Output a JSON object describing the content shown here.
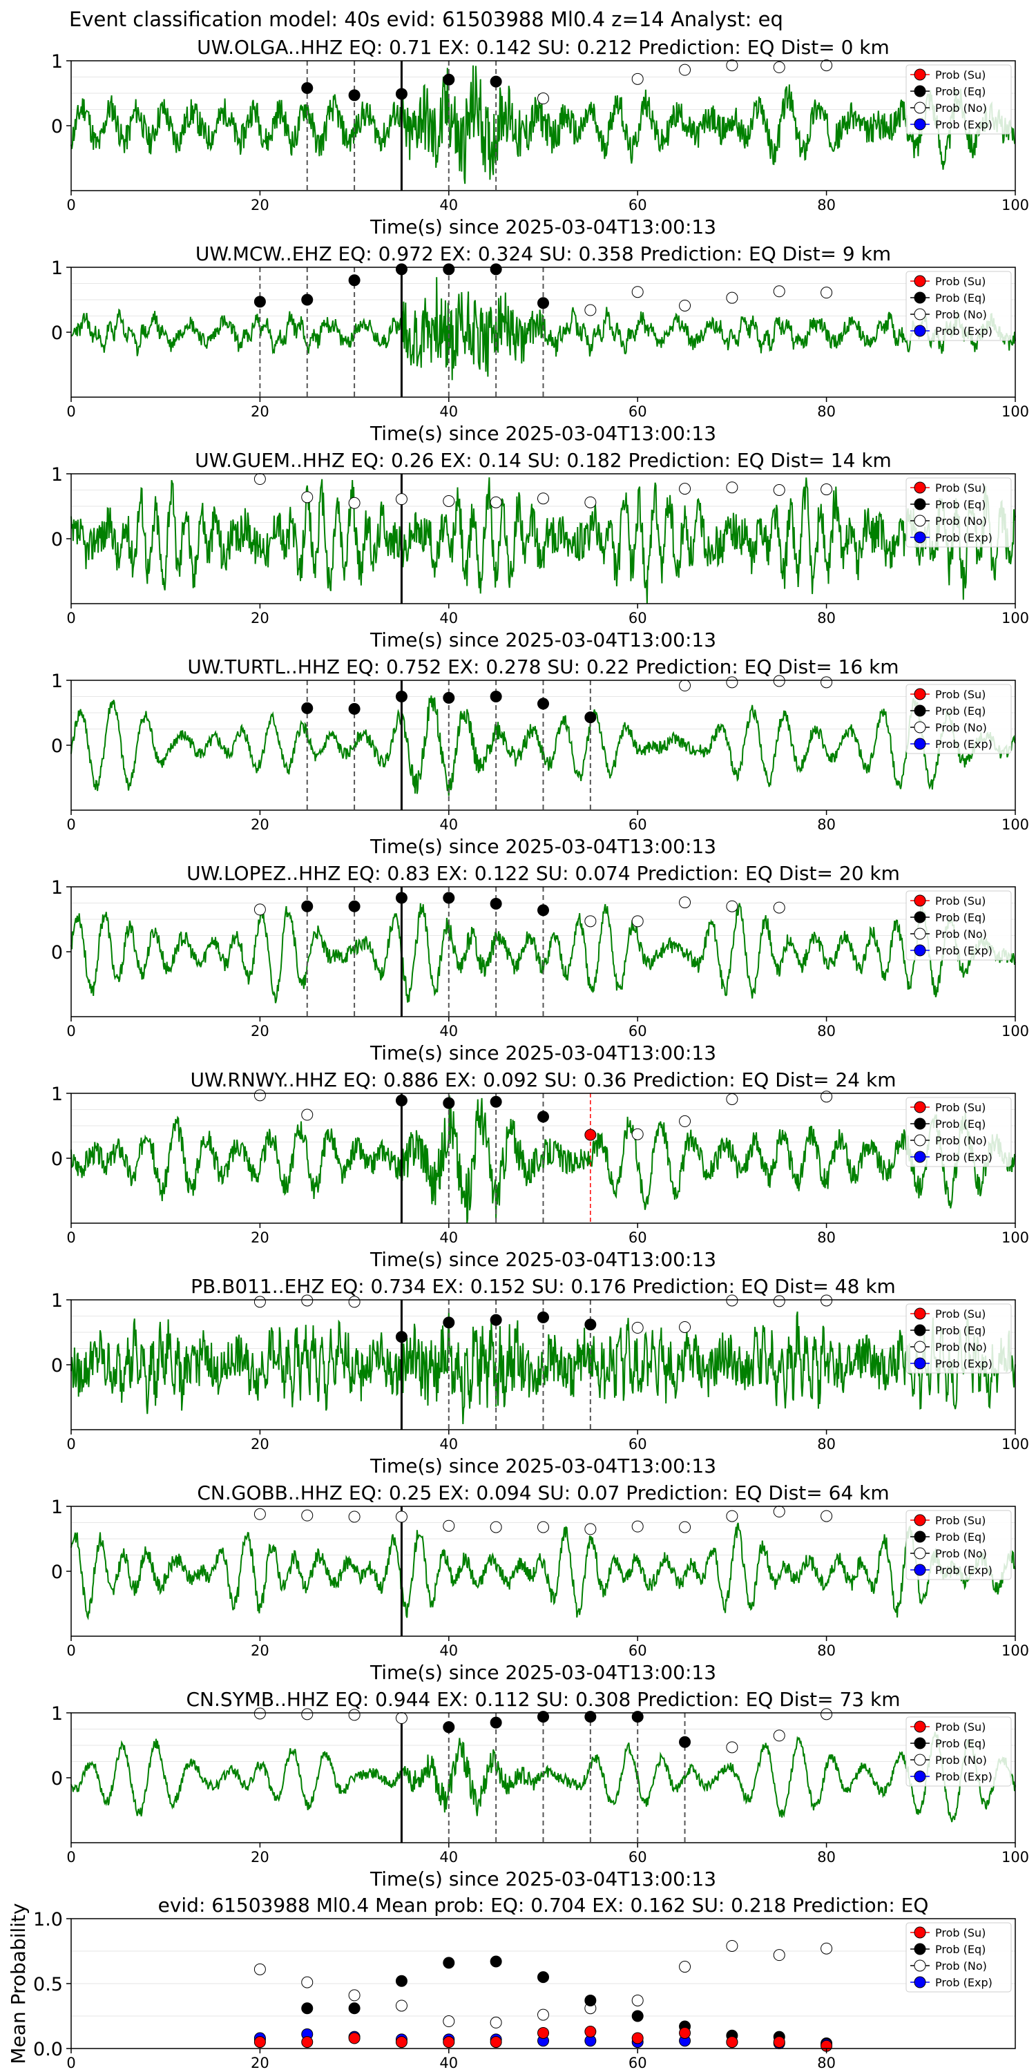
{
  "figure_title": "Event classification model: 40s evid: 61503988 Ml0.4 z=14 Analyst: eq",
  "colors": {
    "waveform": "#008000",
    "prob_su": "#ff0000",
    "prob_eq": "#000000",
    "prob_no": "#ffffff",
    "prob_exp": "#0000ff",
    "pick_line": "#555555",
    "origin_line": "#000000",
    "su_line": "#ff0000"
  },
  "legend_entries": [
    "Prob (Su)",
    "Prob (Eq)",
    "Prob (No)",
    "Prob (Exp)"
  ],
  "chart_data": [
    {
      "type": "line",
      "station": "UW.OLGA..HHZ",
      "title": "UW.OLGA..HHZ   EQ: 0.71  EX: 0.142  SU: 0.212   Prediction: EQ    Dist= 0 km",
      "xlabel": "Time(s) since 2025-03-04T13:00:13",
      "xlim": [
        0,
        100
      ],
      "ylim": [
        -1,
        1
      ],
      "x_ticks": [
        "0",
        "20",
        "40",
        "60",
        "80",
        "100"
      ],
      "y_ticks": [
        "0",
        "1"
      ],
      "legend_position": "top-right",
      "origin_time": 35,
      "eq_picks": [
        25,
        30,
        40,
        45
      ],
      "su_picks": [],
      "eq_points": {
        "x": [
          25,
          30,
          35,
          40,
          45
        ],
        "y": [
          0.58,
          0.47,
          0.49,
          0.71,
          0.68
        ]
      },
      "no_points": {
        "x": [
          50,
          60,
          65,
          70,
          75,
          80
        ],
        "y": [
          0.42,
          0.72,
          0.86,
          0.93,
          0.9,
          0.93
        ]
      },
      "su_points": {
        "x": [],
        "y": []
      },
      "wave": {
        "seed": 11,
        "period": 3.0,
        "amp": 0.35,
        "noise": 0.22,
        "event_boost": 0.45
      }
    },
    {
      "type": "line",
      "station": "UW.MCW..EHZ",
      "title": "UW.MCW..EHZ   EQ: 0.972  EX: 0.324  SU: 0.358   Prediction: EQ    Dist= 9 km",
      "xlabel": "Time(s) since 2025-03-04T13:00:13",
      "xlim": [
        0,
        100
      ],
      "ylim": [
        -1,
        1
      ],
      "x_ticks": [
        "0",
        "20",
        "40",
        "60",
        "80",
        "100"
      ],
      "y_ticks": [
        "0",
        "1"
      ],
      "legend_position": "top-right",
      "origin_time": 35,
      "eq_picks": [
        20,
        25,
        30,
        40,
        45,
        50
      ],
      "su_picks": [],
      "eq_points": {
        "x": [
          20,
          25,
          30,
          35,
          40,
          45,
          50
        ],
        "y": [
          0.47,
          0.5,
          0.8,
          0.97,
          0.97,
          0.97,
          0.45
        ]
      },
      "no_points": {
        "x": [
          55,
          60,
          65,
          70,
          75,
          80
        ],
        "y": [
          0.34,
          0.62,
          0.41,
          0.53,
          0.63,
          0.61
        ]
      },
      "su_points": {
        "x": [],
        "y": []
      },
      "wave": {
        "seed": 23,
        "period": 1.2,
        "amp": 0.12,
        "noise": 0.12,
        "event_boost": 0.55
      }
    },
    {
      "type": "line",
      "station": "UW.GUEM..HHZ",
      "title": "UW.GUEM..HHZ   EQ: 0.26  EX: 0.14  SU: 0.182   Prediction: EQ    Dist= 14 km",
      "xlabel": "Time(s) since 2025-03-04T13:00:13",
      "xlim": [
        0,
        100
      ],
      "ylim": [
        -1,
        1
      ],
      "x_ticks": [
        "0",
        "20",
        "40",
        "60",
        "80",
        "100"
      ],
      "y_ticks": [
        "0",
        "1"
      ],
      "legend_position": "top-right",
      "origin_time": 35,
      "eq_picks": [],
      "su_picks": [],
      "eq_points": {
        "x": [],
        "y": []
      },
      "no_points": {
        "x": [
          20,
          25,
          30,
          35,
          40,
          45,
          50,
          55,
          65,
          70,
          75,
          80
        ],
        "y": [
          0.92,
          0.64,
          0.55,
          0.61,
          0.58,
          0.56,
          0.62,
          0.56,
          0.77,
          0.79,
          0.75,
          0.76
        ]
      },
      "su_points": {
        "x": [],
        "y": []
      },
      "wave": {
        "seed": 37,
        "period": 1.6,
        "amp": 0.55,
        "noise": 0.3,
        "event_boost": 0.0
      }
    },
    {
      "type": "line",
      "station": "UW.TURTL..HHZ",
      "title": "UW.TURTL..HHZ   EQ: 0.752  EX: 0.278  SU: 0.22   Prediction: EQ    Dist= 16 km",
      "xlabel": "Time(s) since 2025-03-04T13:00:13",
      "xlim": [
        0,
        100
      ],
      "ylim": [
        -1,
        1
      ],
      "x_ticks": [
        "0",
        "20",
        "40",
        "60",
        "80",
        "100"
      ],
      "y_ticks": [
        "0",
        "1"
      ],
      "legend_position": "top-right",
      "origin_time": 35,
      "eq_picks": [
        25,
        30,
        40,
        45,
        50,
        55
      ],
      "su_picks": [],
      "eq_points": {
        "x": [
          25,
          30,
          35,
          40,
          45,
          50,
          55
        ],
        "y": [
          0.57,
          0.56,
          0.75,
          0.73,
          0.75,
          0.64,
          0.43
        ]
      },
      "no_points": {
        "x": [
          65,
          70,
          75,
          80
        ],
        "y": [
          0.92,
          0.97,
          0.99,
          0.97
        ]
      },
      "su_points": {
        "x": [],
        "y": []
      },
      "wave": {
        "seed": 41,
        "period": 3.4,
        "amp": 0.5,
        "noise": 0.1,
        "event_boost": 0.1
      }
    },
    {
      "type": "line",
      "station": "UW.LOPEZ..HHZ",
      "title": "UW.LOPEZ..HHZ   EQ: 0.83  EX: 0.122  SU: 0.074   Prediction: EQ    Dist= 20 km",
      "xlabel": "Time(s) since 2025-03-04T13:00:13",
      "xlim": [
        0,
        100
      ],
      "ylim": [
        -1,
        1
      ],
      "x_ticks": [
        "0",
        "20",
        "40",
        "60",
        "80",
        "100"
      ],
      "y_ticks": [
        "0",
        "1"
      ],
      "legend_position": "top-right",
      "origin_time": 35,
      "eq_picks": [
        25,
        30,
        40,
        45,
        50
      ],
      "su_picks": [],
      "eq_points": {
        "x": [
          25,
          30,
          35,
          40,
          45,
          50
        ],
        "y": [
          0.7,
          0.7,
          0.83,
          0.83,
          0.74,
          0.64
        ]
      },
      "no_points": {
        "x": [
          20,
          55,
          60,
          65,
          70,
          75
        ],
        "y": [
          0.65,
          0.47,
          0.47,
          0.76,
          0.7,
          0.68
        ]
      },
      "su_points": {
        "x": [],
        "y": []
      },
      "wave": {
        "seed": 53,
        "period": 2.8,
        "amp": 0.55,
        "noise": 0.12,
        "event_boost": 0.05
      }
    },
    {
      "type": "line",
      "station": "UW.RNWY..HHZ",
      "title": "UW.RNWY..HHZ   EQ: 0.886  EX: 0.092  SU: 0.36   Prediction: EQ    Dist= 24 km",
      "xlabel": "Time(s) since 2025-03-04T13:00:13",
      "xlim": [
        0,
        100
      ],
      "ylim": [
        -1,
        1
      ],
      "x_ticks": [
        "0",
        "20",
        "40",
        "60",
        "80",
        "100"
      ],
      "y_ticks": [
        "0",
        "1"
      ],
      "legend_position": "top-right",
      "origin_time": 35,
      "eq_picks": [
        40,
        45,
        50
      ],
      "su_picks": [
        55
      ],
      "eq_points": {
        "x": [
          35,
          40,
          45,
          50
        ],
        "y": [
          0.89,
          0.85,
          0.87,
          0.64
        ]
      },
      "no_points": {
        "x": [
          20,
          25,
          60,
          65,
          70,
          80
        ],
        "y": [
          0.97,
          0.67,
          0.37,
          0.57,
          0.91,
          0.95
        ]
      },
      "su_points": {
        "x": [
          55
        ],
        "y": [
          0.36
        ]
      },
      "wave": {
        "seed": 67,
        "period": 3.2,
        "amp": 0.5,
        "noise": 0.18,
        "event_boost": 0.25
      }
    },
    {
      "type": "line",
      "station": "PB.B011..EHZ",
      "title": "PB.B011..EHZ   EQ: 0.734  EX: 0.152  SU: 0.176   Prediction: EQ    Dist= 48 km",
      "xlabel": "Time(s) since 2025-03-04T13:00:13",
      "xlim": [
        0,
        100
      ],
      "ylim": [
        -1,
        1
      ],
      "x_ticks": [
        "0",
        "20",
        "40",
        "60",
        "80",
        "100"
      ],
      "y_ticks": [
        "0",
        "1"
      ],
      "legend_position": "top-right",
      "origin_time": 35,
      "eq_picks": [
        40,
        45,
        50,
        55
      ],
      "su_picks": [],
      "eq_points": {
        "x": [
          35,
          40,
          45,
          50,
          55
        ],
        "y": [
          0.43,
          0.65,
          0.69,
          0.73,
          0.62
        ]
      },
      "no_points": {
        "x": [
          20,
          25,
          30,
          60,
          65,
          70,
          75,
          80
        ],
        "y": [
          0.97,
          0.99,
          0.97,
          0.57,
          0.58,
          0.99,
          0.98,
          0.99
        ]
      },
      "su_points": {
        "x": [],
        "y": []
      },
      "wave": {
        "seed": 79,
        "period": 0.9,
        "amp": 0.32,
        "noise": 0.35,
        "event_boost": 0.2
      }
    },
    {
      "type": "line",
      "station": "CN.GOBB..HHZ",
      "title": "CN.GOBB..HHZ   EQ: 0.25  EX: 0.094  SU: 0.07   Prediction: EQ    Dist= 64 km",
      "xlabel": "Time(s) since 2025-03-04T13:00:13",
      "xlim": [
        0,
        100
      ],
      "ylim": [
        -1,
        1
      ],
      "x_ticks": [
        "0",
        "20",
        "40",
        "60",
        "80",
        "100"
      ],
      "y_ticks": [
        "0",
        "1"
      ],
      "legend_position": "top-right",
      "origin_time": 35,
      "eq_picks": [],
      "su_picks": [],
      "eq_points": {
        "x": [],
        "y": []
      },
      "no_points": {
        "x": [
          20,
          25,
          30,
          35,
          40,
          45,
          50,
          55,
          60,
          65,
          70,
          75,
          80
        ],
        "y": [
          0.88,
          0.86,
          0.84,
          0.84,
          0.7,
          0.68,
          0.68,
          0.65,
          0.69,
          0.68,
          0.85,
          0.92,
          0.85
        ]
      },
      "su_points": {
        "x": [],
        "y": []
      },
      "wave": {
        "seed": 83,
        "period": 2.6,
        "amp": 0.45,
        "noise": 0.12,
        "event_boost": 0.0
      }
    },
    {
      "type": "line",
      "station": "CN.SYMB..HHZ",
      "title": "CN.SYMB..HHZ   EQ: 0.944  EX: 0.112  SU: 0.308   Prediction: EQ    Dist= 73 km",
      "xlabel": "Time(s) since 2025-03-04T13:00:13",
      "xlim": [
        0,
        100
      ],
      "ylim": [
        -1,
        1
      ],
      "x_ticks": [
        "0",
        "20",
        "40",
        "60",
        "80",
        "100"
      ],
      "y_ticks": [
        "0",
        "1"
      ],
      "legend_position": "top-right",
      "origin_time": 35,
      "eq_picks": [
        40,
        45,
        50,
        55,
        60,
        65
      ],
      "su_picks": [],
      "eq_points": {
        "x": [
          40,
          45,
          50,
          55,
          60,
          65
        ],
        "y": [
          0.78,
          0.85,
          0.94,
          0.94,
          0.94,
          0.55
        ]
      },
      "no_points": {
        "x": [
          20,
          25,
          30,
          35,
          70,
          75,
          80
        ],
        "y": [
          0.99,
          0.98,
          0.97,
          0.92,
          0.47,
          0.65,
          0.98
        ]
      },
      "su_points": {
        "x": [],
        "y": []
      },
      "wave": {
        "seed": 97,
        "period": 3.6,
        "amp": 0.5,
        "noise": 0.08,
        "event_boost": 0.15
      }
    },
    {
      "type": "scatter",
      "title": "evid: 61503988  Ml0.4   Mean prob:    EQ: 0.704  EX: 0.162  SU: 0.218   Prediction: EQ",
      "ylabel": "Mean Probability",
      "xlim": [
        0,
        100
      ],
      "ylim": [
        0,
        1
      ],
      "x_ticks": [
        "0",
        "20",
        "40",
        "60",
        "80"
      ],
      "y_ticks": [
        "0.0",
        "0.5",
        "1.0"
      ],
      "legend_position": "top-right",
      "x": [
        20,
        25,
        30,
        35,
        40,
        45,
        50,
        55,
        60,
        65,
        70,
        75,
        80
      ],
      "series": [
        {
          "name": "Prob (Su)",
          "values": [
            0.05,
            0.05,
            0.08,
            0.05,
            0.05,
            0.05,
            0.12,
            0.13,
            0.08,
            0.12,
            0.05,
            0.05,
            0.02
          ]
        },
        {
          "name": "Prob (Eq)",
          "values": [
            0.07,
            0.31,
            0.31,
            0.52,
            0.66,
            0.67,
            0.55,
            0.37,
            0.25,
            0.17,
            0.1,
            0.09,
            0.04
          ]
        },
        {
          "name": "Prob (No)",
          "values": [
            0.61,
            0.51,
            0.41,
            0.33,
            0.21,
            0.2,
            0.26,
            0.31,
            0.37,
            0.63,
            0.79,
            0.72,
            0.77
          ]
        },
        {
          "name": "Prob (Exp)",
          "values": [
            0.08,
            0.11,
            0.09,
            0.07,
            0.07,
            0.07,
            0.06,
            0.06,
            0.05,
            0.06,
            0.05,
            0.04,
            0.03
          ]
        }
      ]
    }
  ]
}
